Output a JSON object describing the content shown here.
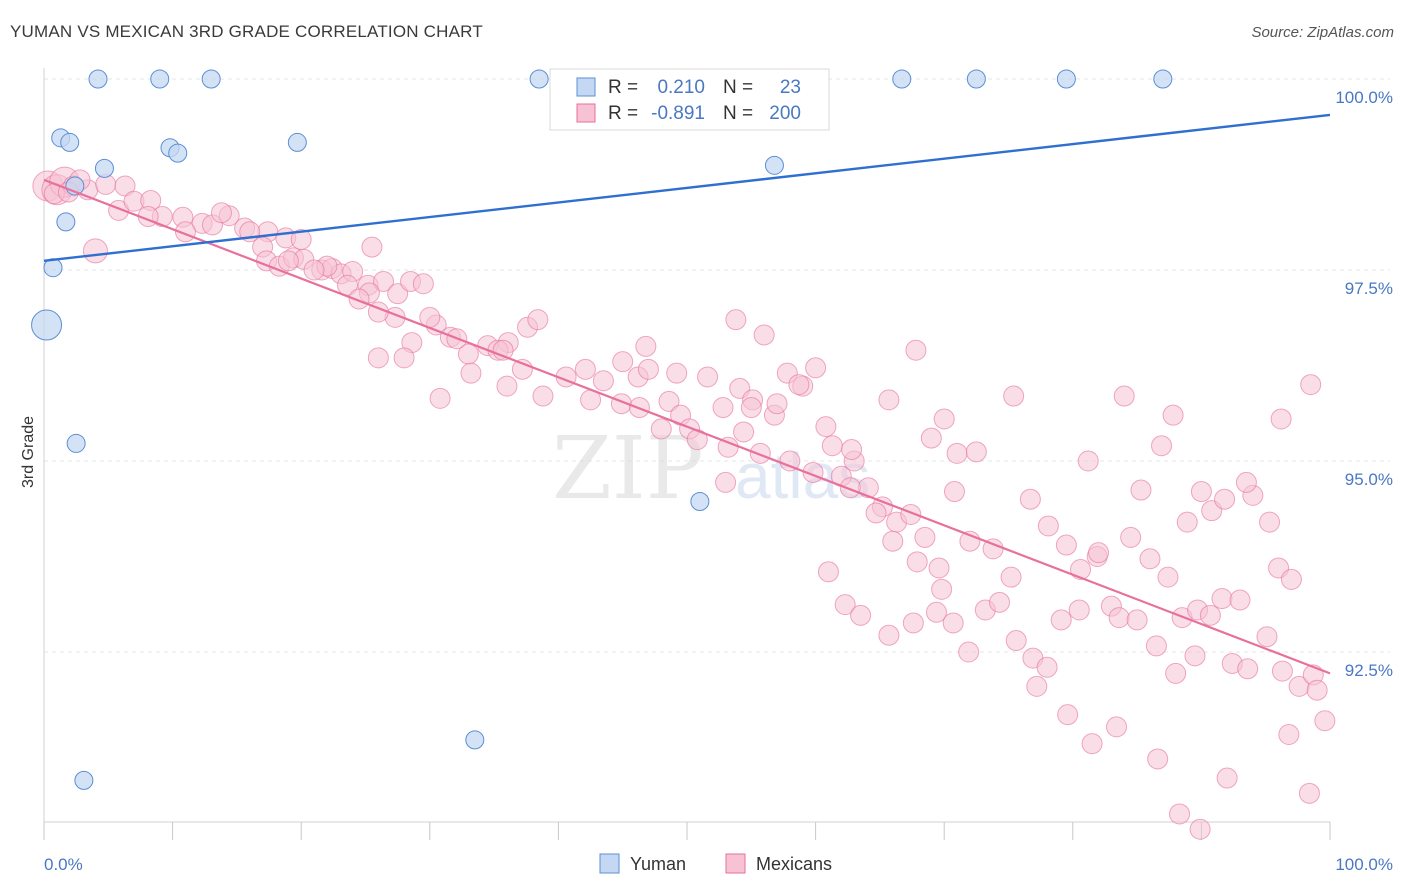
{
  "title": "YUMAN VS MEXICAN 3RD GRADE CORRELATION CHART",
  "source": "Source: ZipAtlas.com",
  "watermark": {
    "zip": "ZIP",
    "atlas": "atlas"
  },
  "chart_data": {
    "type": "scatter",
    "ylabel": "3rd Grade",
    "xlim": [
      0,
      100
    ],
    "ylim": [
      90.0,
      100.6
    ],
    "x_tick_labels": [
      "0.0%",
      "100.0%"
    ],
    "y_ticks": [
      {
        "value": 100.0,
        "label": "100.0%"
      },
      {
        "value": 97.5,
        "label": "97.5%"
      },
      {
        "value": 95.0,
        "label": "95.0%"
      },
      {
        "value": 92.5,
        "label": "92.5%"
      }
    ],
    "grid": true,
    "legend_position": "top-center",
    "series": [
      {
        "name": "Yuman",
        "color": "#5b8fd6",
        "fill": "#c5d8f3",
        "r_label": "R =",
        "r_value": "0.210",
        "n_label": "N =",
        "n_value": "23",
        "trend": {
          "x": [
            0,
            100
          ],
          "y": [
            97.62,
            99.53
          ]
        },
        "points": [
          [
            4.2,
            100.0
          ],
          [
            9.0,
            100.0
          ],
          [
            13.0,
            100.0
          ],
          [
            38.5,
            100.0
          ],
          [
            66.7,
            100.0
          ],
          [
            72.5,
            100.0
          ],
          [
            79.5,
            100.0
          ],
          [
            87.0,
            100.0
          ],
          [
            1.3,
            99.23
          ],
          [
            2.0,
            99.17
          ],
          [
            9.8,
            99.1
          ],
          [
            10.4,
            99.03
          ],
          [
            19.7,
            99.17
          ],
          [
            4.7,
            98.83
          ],
          [
            2.4,
            98.6
          ],
          [
            56.8,
            98.87
          ],
          [
            1.7,
            98.13
          ],
          [
            0.7,
            97.53
          ],
          [
            0.2,
            96.78
          ],
          [
            2.5,
            95.23
          ],
          [
            51.0,
            94.47
          ],
          [
            33.5,
            91.35
          ],
          [
            3.1,
            90.82
          ]
        ],
        "sizes": [
          9,
          9,
          9,
          9,
          9,
          9,
          9,
          9,
          9,
          9,
          9,
          9,
          9,
          9,
          9,
          9,
          9,
          9,
          15,
          9,
          9,
          9,
          9
        ]
      },
      {
        "name": "Mexicans",
        "color": "#e8709c",
        "fill": "#f6c2d4",
        "r_label": "R =",
        "r_value": "-0.891",
        "n_label": "N =",
        "n_value": "200",
        "trend": {
          "x": [
            0,
            100
          ],
          "y": [
            98.68,
            92.22
          ]
        },
        "points": [
          [
            0.3,
            98.6
          ],
          [
            1.0,
            98.55
          ],
          [
            1.6,
            98.65
          ],
          [
            2.3,
            98.6
          ],
          [
            3.4,
            98.55
          ],
          [
            4.8,
            98.62
          ],
          [
            6.3,
            98.6
          ],
          [
            0.8,
            98.5
          ],
          [
            2.8,
            98.68
          ],
          [
            1.9,
            98.52
          ],
          [
            5.8,
            98.28
          ],
          [
            7.0,
            98.4
          ],
          [
            8.3,
            98.41
          ],
          [
            9.2,
            98.2
          ],
          [
            10.8,
            98.19
          ],
          [
            12.3,
            98.11
          ],
          [
            13.1,
            98.09
          ],
          [
            14.4,
            98.21
          ],
          [
            15.6,
            98.05
          ],
          [
            17.4,
            98.0
          ],
          [
            18.8,
            97.92
          ],
          [
            17.0,
            97.8
          ],
          [
            17.3,
            97.62
          ],
          [
            18.3,
            97.55
          ],
          [
            19.4,
            97.66
          ],
          [
            20.2,
            97.64
          ],
          [
            21.6,
            97.5
          ],
          [
            22.4,
            97.52
          ],
          [
            23.1,
            97.45
          ],
          [
            24.0,
            97.48
          ],
          [
            25.2,
            97.3
          ],
          [
            26.4,
            97.35
          ],
          [
            27.5,
            97.19
          ],
          [
            27.3,
            96.88
          ],
          [
            25.3,
            97.2
          ],
          [
            23.6,
            97.3
          ],
          [
            25.5,
            97.8
          ],
          [
            22.0,
            97.55
          ],
          [
            20.0,
            97.9
          ],
          [
            4.0,
            97.75
          ],
          [
            8.1,
            98.2
          ],
          [
            11.0,
            98.0
          ],
          [
            13.8,
            98.25
          ],
          [
            16.0,
            98.0
          ],
          [
            19.0,
            97.62
          ],
          [
            21.0,
            97.5
          ],
          [
            24.5,
            97.12
          ],
          [
            26.0,
            96.95
          ],
          [
            28.5,
            97.35
          ],
          [
            29.5,
            97.32
          ],
          [
            30.5,
            96.78
          ],
          [
            31.6,
            96.62
          ],
          [
            33.0,
            96.4
          ],
          [
            34.5,
            96.51
          ],
          [
            36.1,
            96.55
          ],
          [
            37.6,
            96.75
          ],
          [
            38.4,
            96.85
          ],
          [
            35.3,
            96.45
          ],
          [
            28.6,
            96.55
          ],
          [
            30.0,
            96.88
          ],
          [
            35.7,
            96.45
          ],
          [
            32.1,
            96.6
          ],
          [
            26.0,
            96.35
          ],
          [
            28.0,
            96.35
          ],
          [
            30.8,
            95.82
          ],
          [
            33.2,
            96.15
          ],
          [
            36.0,
            95.98
          ],
          [
            37.2,
            96.2
          ],
          [
            38.8,
            95.85
          ],
          [
            40.6,
            96.1
          ],
          [
            42.1,
            96.2
          ],
          [
            43.5,
            96.05
          ],
          [
            45.0,
            96.3
          ],
          [
            46.2,
            96.1
          ],
          [
            47.0,
            96.2
          ],
          [
            48.6,
            95.78
          ],
          [
            49.5,
            95.6
          ],
          [
            50.2,
            95.42
          ],
          [
            51.6,
            96.1
          ],
          [
            52.8,
            95.7
          ],
          [
            54.1,
            95.95
          ],
          [
            55.1,
            95.8
          ],
          [
            56.0,
            96.65
          ],
          [
            56.8,
            95.6
          ],
          [
            57.8,
            96.15
          ],
          [
            59.0,
            95.98
          ],
          [
            42.5,
            95.8
          ],
          [
            44.9,
            95.75
          ],
          [
            46.3,
            95.7
          ],
          [
            48.0,
            95.42
          ],
          [
            50.8,
            95.28
          ],
          [
            53.2,
            95.18
          ],
          [
            54.4,
            95.38
          ],
          [
            55.7,
            95.1
          ],
          [
            58.0,
            95.0
          ],
          [
            59.8,
            94.85
          ],
          [
            61.3,
            95.2
          ],
          [
            62.0,
            94.8
          ],
          [
            63.0,
            95.0
          ],
          [
            64.1,
            94.65
          ],
          [
            65.2,
            94.4
          ],
          [
            66.3,
            94.2
          ],
          [
            67.4,
            94.3
          ],
          [
            68.5,
            94.0
          ],
          [
            69.0,
            95.3
          ],
          [
            70.0,
            95.55
          ],
          [
            71.0,
            95.1
          ],
          [
            53.0,
            94.72
          ],
          [
            55.0,
            95.7
          ],
          [
            57.0,
            95.75
          ],
          [
            58.7,
            96.0
          ],
          [
            60.8,
            95.45
          ],
          [
            62.7,
            94.65
          ],
          [
            64.7,
            94.32
          ],
          [
            66.0,
            93.95
          ],
          [
            67.9,
            93.68
          ],
          [
            69.6,
            93.6
          ],
          [
            70.8,
            94.6
          ],
          [
            72.0,
            93.95
          ],
          [
            73.8,
            93.85
          ],
          [
            75.2,
            93.48
          ],
          [
            76.7,
            94.5
          ],
          [
            78.1,
            94.15
          ],
          [
            79.5,
            93.9
          ],
          [
            80.6,
            93.58
          ],
          [
            81.9,
            93.75
          ],
          [
            83.0,
            93.1
          ],
          [
            84.5,
            94.0
          ],
          [
            85.3,
            94.62
          ],
          [
            86.0,
            93.72
          ],
          [
            87.4,
            93.48
          ],
          [
            88.5,
            92.95
          ],
          [
            89.7,
            93.05
          ],
          [
            90.8,
            94.35
          ],
          [
            91.6,
            93.2
          ],
          [
            93.0,
            93.18
          ],
          [
            94.0,
            94.55
          ],
          [
            95.3,
            94.2
          ],
          [
            96.0,
            93.6
          ],
          [
            97.0,
            93.45
          ],
          [
            62.3,
            93.12
          ],
          [
            63.5,
            92.98
          ],
          [
            65.7,
            92.72
          ],
          [
            67.6,
            92.88
          ],
          [
            69.4,
            93.02
          ],
          [
            70.7,
            92.88
          ],
          [
            71.9,
            92.5
          ],
          [
            73.2,
            93.05
          ],
          [
            74.3,
            93.15
          ],
          [
            75.6,
            92.65
          ],
          [
            76.9,
            92.42
          ],
          [
            78.0,
            92.3
          ],
          [
            79.1,
            92.92
          ],
          [
            80.5,
            93.05
          ],
          [
            82.0,
            93.8
          ],
          [
            83.6,
            92.95
          ],
          [
            85.0,
            92.92
          ],
          [
            86.5,
            92.58
          ],
          [
            88.0,
            92.22
          ],
          [
            89.5,
            92.45
          ],
          [
            90.7,
            92.98
          ],
          [
            92.4,
            92.35
          ],
          [
            93.6,
            92.28
          ],
          [
            95.1,
            92.7
          ],
          [
            96.3,
            92.25
          ],
          [
            97.6,
            92.05
          ],
          [
            98.7,
            92.2
          ],
          [
            99.0,
            92.0
          ],
          [
            46.8,
            96.5
          ],
          [
            49.2,
            96.15
          ],
          [
            53.8,
            96.85
          ],
          [
            60.0,
            96.22
          ],
          [
            62.8,
            95.15
          ],
          [
            65.7,
            95.8
          ],
          [
            67.8,
            96.45
          ],
          [
            72.5,
            95.12
          ],
          [
            75.4,
            95.85
          ],
          [
            81.2,
            95.0
          ],
          [
            84.0,
            95.85
          ],
          [
            87.8,
            95.6
          ],
          [
            86.9,
            95.2
          ],
          [
            88.9,
            94.2
          ],
          [
            90.0,
            94.6
          ],
          [
            91.8,
            94.5
          ],
          [
            93.5,
            94.72
          ],
          [
            96.2,
            95.55
          ],
          [
            98.5,
            96.0
          ],
          [
            77.2,
            92.05
          ],
          [
            79.6,
            91.68
          ],
          [
            81.5,
            91.3
          ],
          [
            83.4,
            91.52
          ],
          [
            86.6,
            91.1
          ],
          [
            88.3,
            90.38
          ],
          [
            89.9,
            90.18
          ],
          [
            92.0,
            90.85
          ],
          [
            96.8,
            91.42
          ],
          [
            98.4,
            90.65
          ],
          [
            99.6,
            91.6
          ],
          [
            61.0,
            93.55
          ],
          [
            69.8,
            93.32
          ]
        ]
      }
    ]
  },
  "legend": {
    "entries": [
      "Yuman",
      "Mexicans"
    ]
  }
}
